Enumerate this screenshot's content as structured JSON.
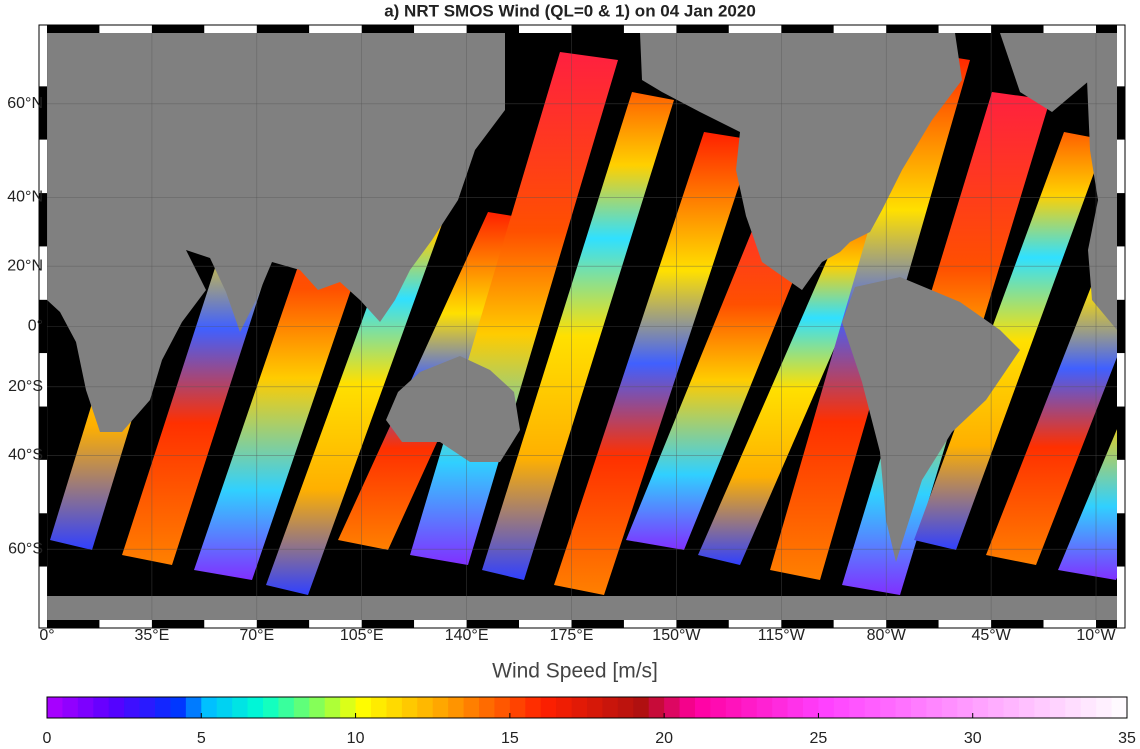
{
  "title": "a) NRT SMOS Wind (QL=0 & 1) on 04 Jan 2020",
  "map": {
    "lonlim": [
      0,
      357
    ],
    "latlim": [
      -70,
      70
    ],
    "lon_ticks": [
      {
        "value": 0,
        "label": "0°"
      },
      {
        "value": 35,
        "label": "35°E"
      },
      {
        "value": 70,
        "label": "70°E"
      },
      {
        "value": 105,
        "label": "105°E"
      },
      {
        "value": 140,
        "label": "140°E"
      },
      {
        "value": 175,
        "label": "175°E"
      },
      {
        "value": 210,
        "label": "150°W"
      },
      {
        "value": 245,
        "label": "115°W"
      },
      {
        "value": 280,
        "label": "80°W"
      },
      {
        "value": 315,
        "label": "45°W"
      },
      {
        "value": 350,
        "label": "10°W"
      }
    ],
    "lat_ticks": [
      {
        "value": -60,
        "label": "60°S"
      },
      {
        "value": -40,
        "label": "40°S"
      },
      {
        "value": -20,
        "label": "20°S"
      },
      {
        "value": 0,
        "label": "0°"
      },
      {
        "value": 20,
        "label": "20°N"
      },
      {
        "value": 40,
        "label": "40°N"
      },
      {
        "value": 60,
        "label": "60°N"
      }
    ],
    "grid": true
  },
  "colorbar": {
    "label": "Wind Speed [m/s]",
    "lim": [
      0,
      35
    ],
    "ticks": [
      0,
      5,
      10,
      15,
      20,
      25,
      30,
      35
    ]
  }
}
